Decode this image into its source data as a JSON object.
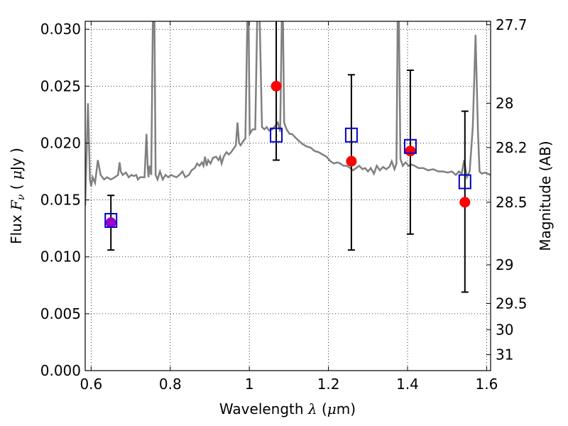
{
  "chart_data": {
    "type": "scatter",
    "xlabel": {
      "prefix": "Wavelength  ",
      "symbol": "λ",
      "unit_open": " (",
      "unit_mu": "μ",
      "unit_rest": "m)"
    },
    "ylabel": {
      "prefix": "Flux  ",
      "symbol": "F",
      "subscript": "ν",
      "unit_open": " ( ",
      "unit_mu": "μ",
      "unit_rest": "Jy )"
    },
    "y2label": "Magnitude (AB)",
    "xlim": [
      0.585,
      1.61
    ],
    "ylim": [
      0.0,
      0.0307
    ],
    "x_ticks": [
      0.6,
      0.8,
      1.0,
      1.2,
      1.4,
      1.6
    ],
    "x_tick_labels": [
      "0.6",
      "0.8",
      "1",
      "1.2",
      "1.4",
      "1.6"
    ],
    "y_ticks": [
      0.0,
      0.005,
      0.01,
      0.015,
      0.02,
      0.025,
      0.03
    ],
    "y_tick_labels": [
      "0.000",
      "0.005",
      "0.010",
      "0.015",
      "0.020",
      "0.025",
      "0.030"
    ],
    "y2_ticks": [
      {
        "label": "27.7",
        "flux": 0.0304
      },
      {
        "label": "28",
        "flux": 0.0235
      },
      {
        "label": "28.2",
        "flux": 0.0196
      },
      {
        "label": "28.5",
        "flux": 0.0148
      },
      {
        "label": "29",
        "flux": 0.0093
      },
      {
        "label": "29.5",
        "flux": 0.0059
      },
      {
        "label": "30",
        "flux": 0.0036
      },
      {
        "label": "31",
        "flux": 0.0014
      }
    ],
    "grid": true,
    "spectrum": {
      "color": "#808080",
      "x": [
        0.585,
        0.592,
        0.597,
        0.6,
        0.604,
        0.61,
        0.617,
        0.624,
        0.633,
        0.64,
        0.65,
        0.66,
        0.668,
        0.672,
        0.675,
        0.68,
        0.688,
        0.695,
        0.702,
        0.708,
        0.714,
        0.718,
        0.724,
        0.73,
        0.735,
        0.74,
        0.743,
        0.745,
        0.748,
        0.752,
        0.756,
        0.76,
        0.763,
        0.768,
        0.774,
        0.781,
        0.788,
        0.795,
        0.802,
        0.808,
        0.816,
        0.823,
        0.831,
        0.838,
        0.847,
        0.854,
        0.862,
        0.868,
        0.874,
        0.88,
        0.884,
        0.888,
        0.892,
        0.896,
        0.902,
        0.908,
        0.916,
        0.922,
        0.926,
        0.93,
        0.935,
        0.942,
        0.948,
        0.954,
        0.96,
        0.966,
        0.97,
        0.974,
        0.978,
        0.985,
        0.99,
        0.995,
        0.998,
        1.001,
        1.008,
        1.015,
        1.02,
        1.026,
        1.032,
        1.038,
        1.044,
        1.05,
        1.058,
        1.065,
        1.072,
        1.078,
        1.082,
        1.085,
        1.088,
        1.094,
        1.102,
        1.108,
        1.116,
        1.125,
        1.135,
        1.145,
        1.155,
        1.165,
        1.175,
        1.185,
        1.195,
        1.205,
        1.214,
        1.222,
        1.23,
        1.238,
        1.246,
        1.255,
        1.262,
        1.27,
        1.278,
        1.286,
        1.293,
        1.3,
        1.307,
        1.315,
        1.322,
        1.33,
        1.338,
        1.346,
        1.354,
        1.36,
        1.367,
        1.372,
        1.375,
        1.378,
        1.382,
        1.388,
        1.395,
        1.403,
        1.41,
        1.418,
        1.428,
        1.44,
        1.452,
        1.465,
        1.478,
        1.49,
        1.502,
        1.512,
        1.522,
        1.53,
        1.537,
        1.543,
        1.55,
        1.557,
        1.565,
        1.572,
        1.578,
        1.582,
        1.588,
        1.595,
        1.603,
        1.61
      ],
      "y": [
        0.0145,
        0.0235,
        0.0168,
        0.0162,
        0.017,
        0.0165,
        0.0185,
        0.0172,
        0.0168,
        0.017,
        0.0168,
        0.017,
        0.0172,
        0.0183,
        0.0175,
        0.0172,
        0.0174,
        0.017,
        0.0172,
        0.0171,
        0.0172,
        0.0168,
        0.017,
        0.017,
        0.017,
        0.0208,
        0.018,
        0.017,
        0.018,
        0.0172,
        0.031,
        0.031,
        0.0172,
        0.0168,
        0.0175,
        0.0168,
        0.0172,
        0.017,
        0.0172,
        0.0171,
        0.017,
        0.0172,
        0.0175,
        0.017,
        0.0172,
        0.0176,
        0.0178,
        0.0182,
        0.018,
        0.0183,
        0.018,
        0.0188,
        0.018,
        0.0185,
        0.0182,
        0.0187,
        0.0188,
        0.0185,
        0.0188,
        0.0182,
        0.0188,
        0.0192,
        0.019,
        0.0192,
        0.0195,
        0.0198,
        0.0218,
        0.02,
        0.0198,
        0.0202,
        0.0204,
        0.031,
        0.031,
        0.0208,
        0.0212,
        0.0212,
        0.031,
        0.031,
        0.0214,
        0.0212,
        0.0214,
        0.0211,
        0.0212,
        0.0215,
        0.0218,
        0.021,
        0.031,
        0.031,
        0.0218,
        0.0212,
        0.0208,
        0.0208,
        0.0205,
        0.0202,
        0.0199,
        0.0197,
        0.0196,
        0.0193,
        0.0192,
        0.019,
        0.0188,
        0.0184,
        0.0182,
        0.0183,
        0.0182,
        0.018,
        0.018,
        0.0178,
        0.0176,
        0.0178,
        0.018,
        0.0177,
        0.0178,
        0.0175,
        0.0178,
        0.0173,
        0.018,
        0.0176,
        0.0179,
        0.0177,
        0.0179,
        0.0184,
        0.0177,
        0.0182,
        0.031,
        0.031,
        0.0186,
        0.018,
        0.0183,
        0.018,
        0.0181,
        0.018,
        0.0178,
        0.0178,
        0.0176,
        0.0177,
        0.0175,
        0.0175,
        0.0174,
        0.0175,
        0.0172,
        0.0175,
        0.0173,
        0.0185,
        0.017,
        0.0175,
        0.0214,
        0.0295,
        0.021,
        0.0175,
        0.0173,
        0.0174,
        0.0173,
        0.0172
      ]
    },
    "series": [
      {
        "marker": "circle",
        "color": "#ff0000",
        "x": [
          0.65,
          1.068,
          1.258,
          1.407,
          1.545
        ],
        "y": [
          0.013,
          0.025,
          0.0184,
          0.0193,
          0.0148
        ],
        "yerr_low": [
          0.0106,
          0.0185,
          0.0106,
          0.012,
          0.0069
        ],
        "yerr_high": [
          0.0154,
          0.031,
          0.026,
          0.0264,
          0.0228
        ]
      },
      {
        "marker": "square",
        "color": "#0000cc",
        "x": [
          0.65,
          1.068,
          1.258,
          1.407,
          1.545
        ],
        "y": [
          0.0132,
          0.0207,
          0.0207,
          0.0197,
          0.0166
        ]
      }
    ],
    "highlight_point": {
      "x": 0.65,
      "y": 0.013,
      "color": "#9900cc"
    },
    "errorbar_color": "#000000"
  }
}
